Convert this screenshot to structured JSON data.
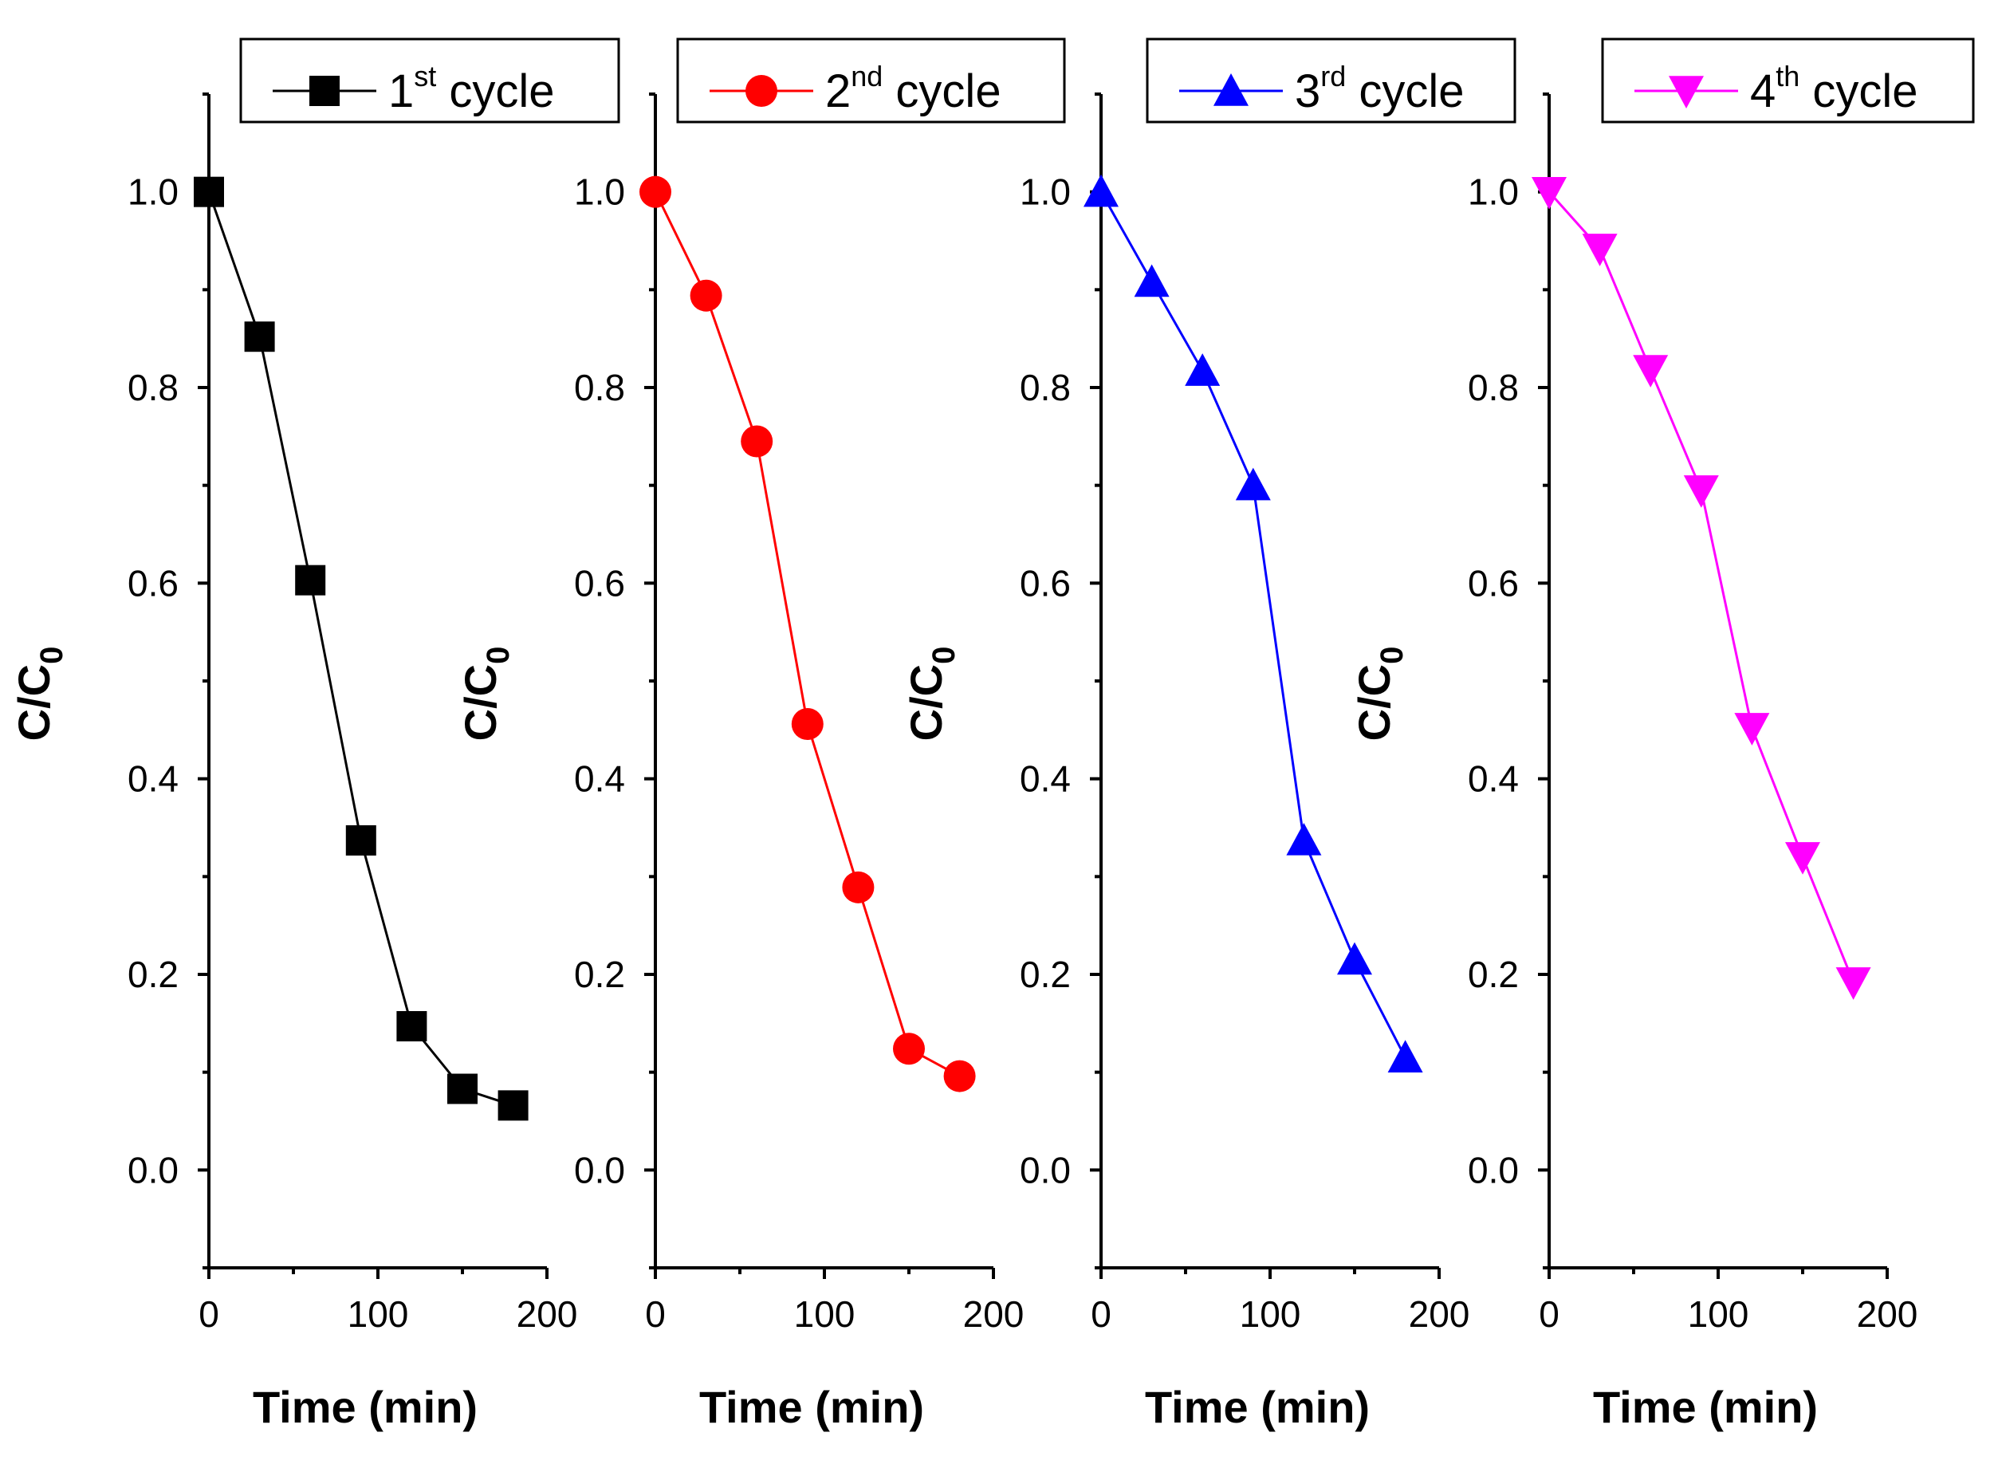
{
  "chart_data": {
    "type": "line",
    "shared_axes": {
      "xlabel": "Time (min)",
      "ylabel_main": "C/C",
      "ylabel_sub": "0",
      "xlim": [
        0,
        200
      ],
      "ylim": [
        -0.1,
        1.1
      ],
      "xticks": [
        0,
        100,
        200
      ],
      "yticks": [
        0.0,
        0.2,
        0.4,
        0.6,
        0.8,
        1.0
      ],
      "ytick_labels": [
        "0.0",
        "0.2",
        "0.4",
        "0.6",
        "0.8",
        "1.0"
      ],
      "x": [
        0,
        30,
        60,
        90,
        120,
        150,
        180
      ]
    },
    "series": [
      {
        "name": "1st cycle",
        "legend_main": "1",
        "legend_sup": "st",
        "legend_tail": " cycle",
        "color": "#000000",
        "marker": "square",
        "values": [
          1.0,
          0.852,
          0.603,
          0.337,
          0.147,
          0.083,
          0.066
        ]
      },
      {
        "name": "2nd cycle",
        "legend_main": "2",
        "legend_sup": "nd",
        "legend_tail": " cycle",
        "color": "#ff0000",
        "marker": "circle",
        "values": [
          1.0,
          0.894,
          0.745,
          0.456,
          0.289,
          0.124,
          0.096
        ]
      },
      {
        "name": "3rd cycle",
        "legend_main": "3",
        "legend_sup": "rd",
        "legend_tail": " cycle",
        "color": "#0000ff",
        "marker": "triangle-up",
        "values": [
          1.0,
          0.908,
          0.817,
          0.7,
          0.337,
          0.215,
          0.115
        ]
      },
      {
        "name": "4th cycle",
        "legend_main": "4",
        "legend_sup": "th",
        "legend_tail": " cycle",
        "color": "#ff00ff",
        "marker": "triangle-down",
        "values": [
          1.0,
          0.942,
          0.818,
          0.695,
          0.452,
          0.32,
          0.192
        ]
      }
    ]
  }
}
